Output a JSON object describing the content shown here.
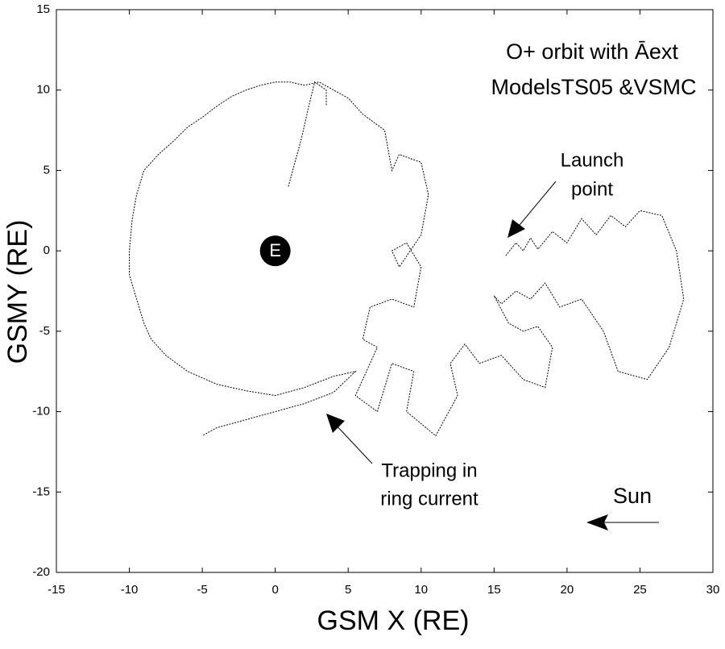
{
  "chart_data": {
    "type": "line",
    "title": "O+ orbit with Āext",
    "subtitle": "ModelsTS05 &VSMC",
    "x_label": "GSM X (RE)",
    "y_label": "GSMY (RE)",
    "xlim": [
      -15,
      30
    ],
    "xticks": [
      -15,
      -10,
      -5,
      0,
      5,
      10,
      15,
      20,
      25,
      30
    ],
    "ylim": [
      -20,
      15
    ],
    "yticks": [
      -20,
      -15,
      -10,
      -5,
      0,
      5,
      10,
      15
    ],
    "earth": {
      "label": "E",
      "x": 0,
      "y": 0
    },
    "annotations": [
      "Launch",
      "point",
      "Trapping in",
      "ring current",
      "Sun"
    ],
    "series": [
      {
        "name": "O+ orbit",
        "color": "#000000",
        "x": [
          15.8,
          16.5,
          17,
          17.5,
          18,
          19,
          20,
          21,
          22,
          23,
          24,
          25,
          26.5,
          27.5,
          28,
          27,
          25.5,
          23.5,
          22.5,
          21,
          19.5,
          18.5,
          17.5,
          16.5,
          15.5,
          15,
          16,
          17,
          18,
          19,
          18.5,
          17,
          15.5,
          14,
          13,
          12,
          12.5,
          11,
          9,
          9.5,
          8,
          7,
          5.5,
          7,
          6,
          6.5,
          8,
          9.5,
          10,
          9,
          8,
          8.5,
          10,
          10.5,
          10,
          8.5,
          8,
          7.5,
          6,
          5,
          4,
          3,
          2,
          1,
          0,
          -1,
          -2,
          -3,
          -4,
          -5,
          -6,
          -7,
          -8,
          -9,
          -9.5,
          -9.8,
          -10,
          -10,
          -9.5,
          -9,
          -8.5,
          -7.5,
          -6,
          -4,
          -2,
          0,
          2,
          4,
          5.5,
          4,
          2,
          0,
          -2,
          -4,
          -5,
          null,
          0.9,
          1.8,
          2.3,
          2.7,
          3.5,
          3.5
        ],
        "y": [
          -0.3,
          0.5,
          0,
          0.8,
          0.1,
          1.2,
          0.5,
          2,
          1,
          2.2,
          1.5,
          2.5,
          2.2,
          0,
          -3,
          -6,
          -8,
          -7.5,
          -5,
          -3,
          -3.5,
          -2,
          -3,
          -2.5,
          -3.3,
          -2.8,
          -4.5,
          -5,
          -4.7,
          -6,
          -8.5,
          -8,
          -6.5,
          -7,
          -5.8,
          -7,
          -9,
          -11.5,
          -10,
          -7.5,
          -7,
          -10,
          -9,
          -6,
          -5.5,
          -3.5,
          -3,
          -3.5,
          -1,
          0.5,
          0,
          -1,
          1,
          3.5,
          5.5,
          6,
          5,
          7.5,
          8.5,
          9.5,
          10,
          10.5,
          10.3,
          10.5,
          10.5,
          10.3,
          10,
          9.6,
          9,
          8.3,
          7.7,
          6.8,
          6,
          5,
          3.5,
          2,
          0,
          -1.5,
          -3,
          -4.5,
          -5.5,
          -6.5,
          -7.5,
          -8.3,
          -8.7,
          -9,
          -8.5,
          -7.8,
          -7.5,
          -8.8,
          -9.5,
          -10,
          -10.5,
          -11,
          -11.5,
          null,
          4,
          7,
          9,
          10.5,
          10,
          9
        ]
      }
    ]
  }
}
